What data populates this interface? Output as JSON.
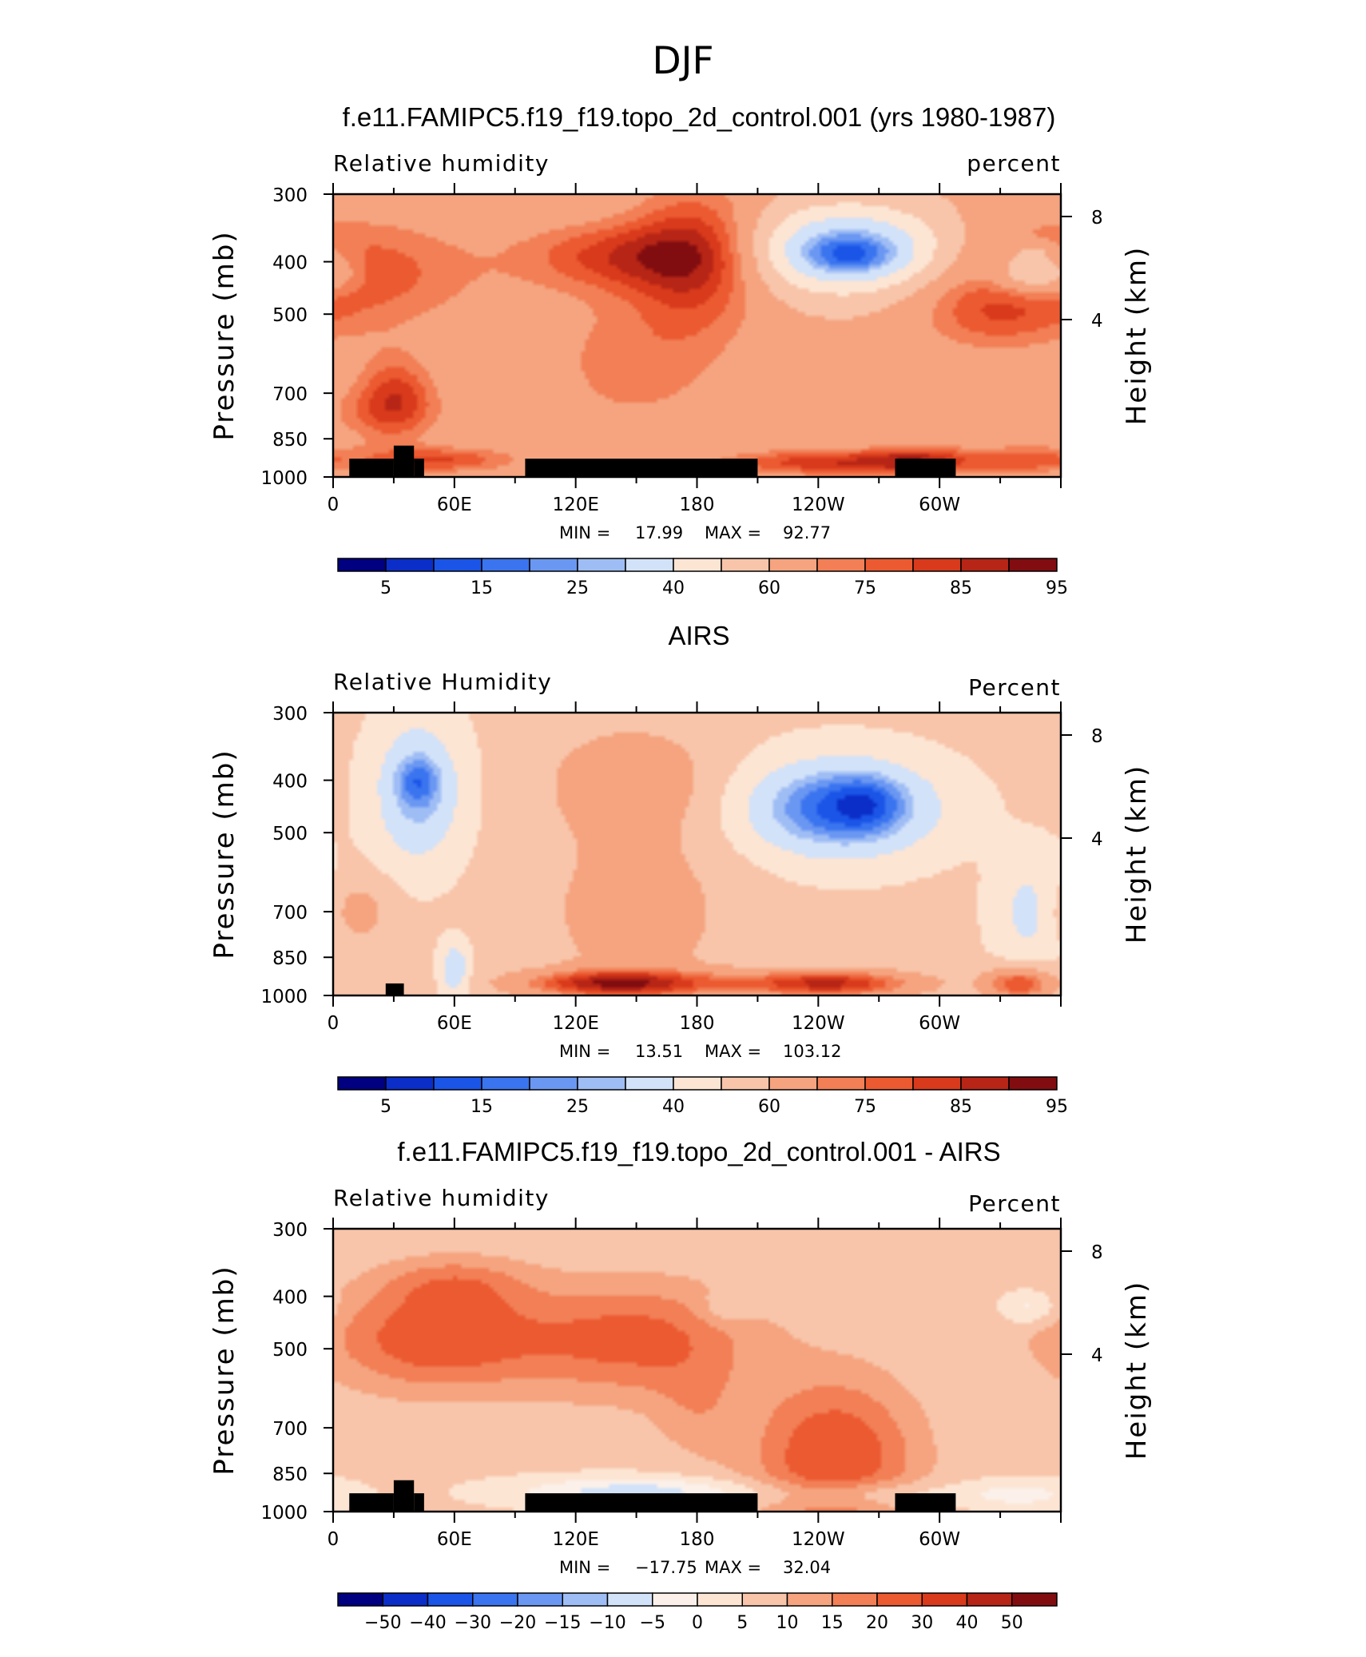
{
  "figure": {
    "title": "DJF"
  },
  "colors": {
    "rh_levels": [
      "#000080",
      "#0b2ec9",
      "#1a55e8",
      "#3a74ef",
      "#6a97f2",
      "#9fbdf5",
      "#d2e2f9",
      "#fde5d4",
      "#f8c5aa",
      "#f5a47f",
      "#f27f55",
      "#ec5a31",
      "#d83a1b",
      "#b62516",
      "#820d10"
    ],
    "diff_levels": [
      "#000080",
      "#0b2ec9",
      "#1a55e8",
      "#3a74ef",
      "#6a97f2",
      "#9fbdf5",
      "#d2e2f9",
      "#fbf1ea",
      "#fde5d4",
      "#f8c5aa",
      "#f5a47f",
      "#f27f55",
      "#ec5a31",
      "#d83a1b",
      "#b62516",
      "#820d10"
    ],
    "topography": "#000000"
  },
  "chart_data": [
    {
      "type": "heatmap",
      "title": "f.e11.FAMIPC5.f19_f19.topo_2d_control.001 (yrs 1980-1987)",
      "left_label": "Relative humidity",
      "right_label": "percent",
      "ylabel": "Pressure (mb)",
      "ylabel_right": "Height (km)",
      "xticks": [
        "0",
        "60E",
        "120E",
        "180",
        "120W",
        "60W"
      ],
      "yticks": [
        "300",
        "400",
        "500",
        "700",
        "850",
        "1000"
      ],
      "yticks_right": [
        "8",
        "4"
      ],
      "xlim": [
        0,
        360
      ],
      "ylim": [
        1000,
        300
      ],
      "stats": {
        "min_label": "MIN =",
        "min": "17.99",
        "max_label": "MAX =",
        "max": "92.77"
      },
      "levels": [
        5,
        10,
        15,
        20,
        25,
        30,
        40,
        50,
        60,
        70,
        75,
        80,
        85,
        90,
        95
      ],
      "colorbar_labels": [
        "5",
        "15",
        "25",
        "40",
        "60",
        "75",
        "85",
        "95"
      ],
      "topography": [
        [
          8,
          30,
          925
        ],
        [
          30,
          40,
          875
        ],
        [
          40,
          45,
          925
        ],
        [
          95,
          210,
          925
        ],
        [
          278,
          308,
          925
        ]
      ],
      "background": 62,
      "features": [
        [
          420,
          5,
          0.18,
          0.2,
          18
        ],
        [
          760,
          24,
          0.09,
          0.11,
          10
        ],
        [
          620,
          148,
          0.14,
          0.28,
          10
        ],
        [
          390,
          180,
          0.09,
          0.26,
          22
        ],
        [
          380,
          255,
          0.13,
          0.15,
          -40
        ],
        [
          390,
          256,
          0.06,
          0.06,
          -12
        ],
        [
          420,
          348,
          0.06,
          0.08,
          -28
        ],
        [
          380,
          346,
          0.03,
          0.03,
          -8
        ],
        [
          390,
          140,
          0.13,
          0.12,
          18
        ],
        [
          500,
          325,
          0.1,
          0.14,
          12
        ],
        [
          700,
          31,
          0.05,
          0.15,
          16
        ],
        [
          930,
          52,
          0.11,
          0.045,
          18
        ],
        [
          940,
          245,
          0.14,
          0.045,
          22
        ],
        [
          930,
          290,
          0.07,
          0.05,
          18
        ],
        [
          930,
          340,
          0.08,
          0.05,
          16
        ]
      ]
    },
    {
      "type": "heatmap",
      "title": "AIRS",
      "left_label": "Relative Humidity",
      "right_label": "Percent",
      "ylabel": "Pressure (mb)",
      "ylabel_right": "Height (km)",
      "xticks": [
        "0",
        "60E",
        "120E",
        "180",
        "120W",
        "60W"
      ],
      "yticks": [
        "300",
        "400",
        "500",
        "700",
        "850",
        "1000"
      ],
      "yticks_right": [
        "8",
        "4"
      ],
      "xlim": [
        0,
        360
      ],
      "ylim": [
        1000,
        300
      ],
      "stats": {
        "min_label": "MIN =",
        "min": "13.51",
        "max_label": "MAX =",
        "max": "103.12"
      },
      "levels": [
        5,
        10,
        15,
        20,
        25,
        30,
        40,
        50,
        60,
        70,
        75,
        80,
        85,
        90,
        95
      ],
      "colorbar_labels": [
        "5",
        "15",
        "25",
        "40",
        "60",
        "75",
        "85",
        "95"
      ],
      "topography": [
        [
          26,
          35,
          950
        ]
      ],
      "background": 52,
      "features": [
        [
          420,
          42,
          0.06,
          0.25,
          -26
        ],
        [
          400,
          42,
          0.03,
          0.08,
          -12
        ],
        [
          450,
          250,
          0.13,
          0.17,
          -38
        ],
        [
          440,
          265,
          0.05,
          0.1,
          -10
        ],
        [
          400,
          148,
          0.12,
          0.2,
          16
        ],
        [
          700,
          150,
          0.13,
          0.3,
          14
        ],
        [
          700,
          345,
          0.05,
          0.2,
          -16
        ],
        [
          900,
          60,
          0.02,
          0.1,
          -22
        ],
        [
          700,
          10,
          0.05,
          0.12,
          14
        ],
        [
          950,
          140,
          0.14,
          0.05,
          34
        ],
        [
          950,
          245,
          0.13,
          0.05,
          34
        ],
        [
          950,
          340,
          0.05,
          0.06,
          30
        ]
      ]
    },
    {
      "type": "heatmap",
      "title": "f.e11.FAMIPC5.f19_f19.topo_2d_control.001 - AIRS",
      "left_label": "Relative humidity",
      "right_label": "Percent",
      "ylabel": "Pressure (mb)",
      "ylabel_right": "Height (km)",
      "xticks": [
        "0",
        "60E",
        "120E",
        "180",
        "120W",
        "60W"
      ],
      "yticks": [
        "300",
        "400",
        "500",
        "700",
        "850",
        "1000"
      ],
      "yticks_right": [
        "8",
        "4"
      ],
      "xlim": [
        0,
        360
      ],
      "ylim": [
        1000,
        300
      ],
      "stats": {
        "min_label": "MIN =",
        "min": "−17.75",
        "max_label": "MAX =",
        "max": "32.04"
      },
      "levels": [
        -50,
        -40,
        -30,
        -20,
        -15,
        -10,
        -5,
        0,
        5,
        10,
        15,
        20,
        30,
        40,
        50
      ],
      "colorbar_labels": [
        "−50",
        "−40",
        "−30",
        "−20",
        "−15",
        "−10",
        "−5",
        "0",
        "5",
        "10",
        "15",
        "20",
        "30",
        "40",
        "50"
      ],
      "topography": [
        [
          8,
          30,
          925
        ],
        [
          30,
          40,
          875
        ],
        [
          40,
          45,
          925
        ],
        [
          95,
          210,
          925
        ],
        [
          278,
          308,
          925
        ]
      ],
      "background": 6,
      "features": [
        [
          480,
          50,
          0.15,
          0.18,
          18
        ],
        [
          480,
          150,
          0.16,
          0.2,
          16
        ],
        [
          800,
          248,
          0.11,
          0.28,
          20
        ],
        [
          380,
          60,
          0.1,
          0.1,
          10
        ],
        [
          920,
          150,
          0.16,
          0.05,
          -14
        ],
        [
          930,
          260,
          0.12,
          0.05,
          -10
        ],
        [
          930,
          340,
          0.08,
          0.05,
          -8
        ],
        [
          420,
          195,
          0.04,
          0.06,
          -6
        ],
        [
          420,
          345,
          0.04,
          0.06,
          -9
        ],
        [
          650,
          180,
          0.06,
          0.18,
          6
        ]
      ]
    }
  ]
}
